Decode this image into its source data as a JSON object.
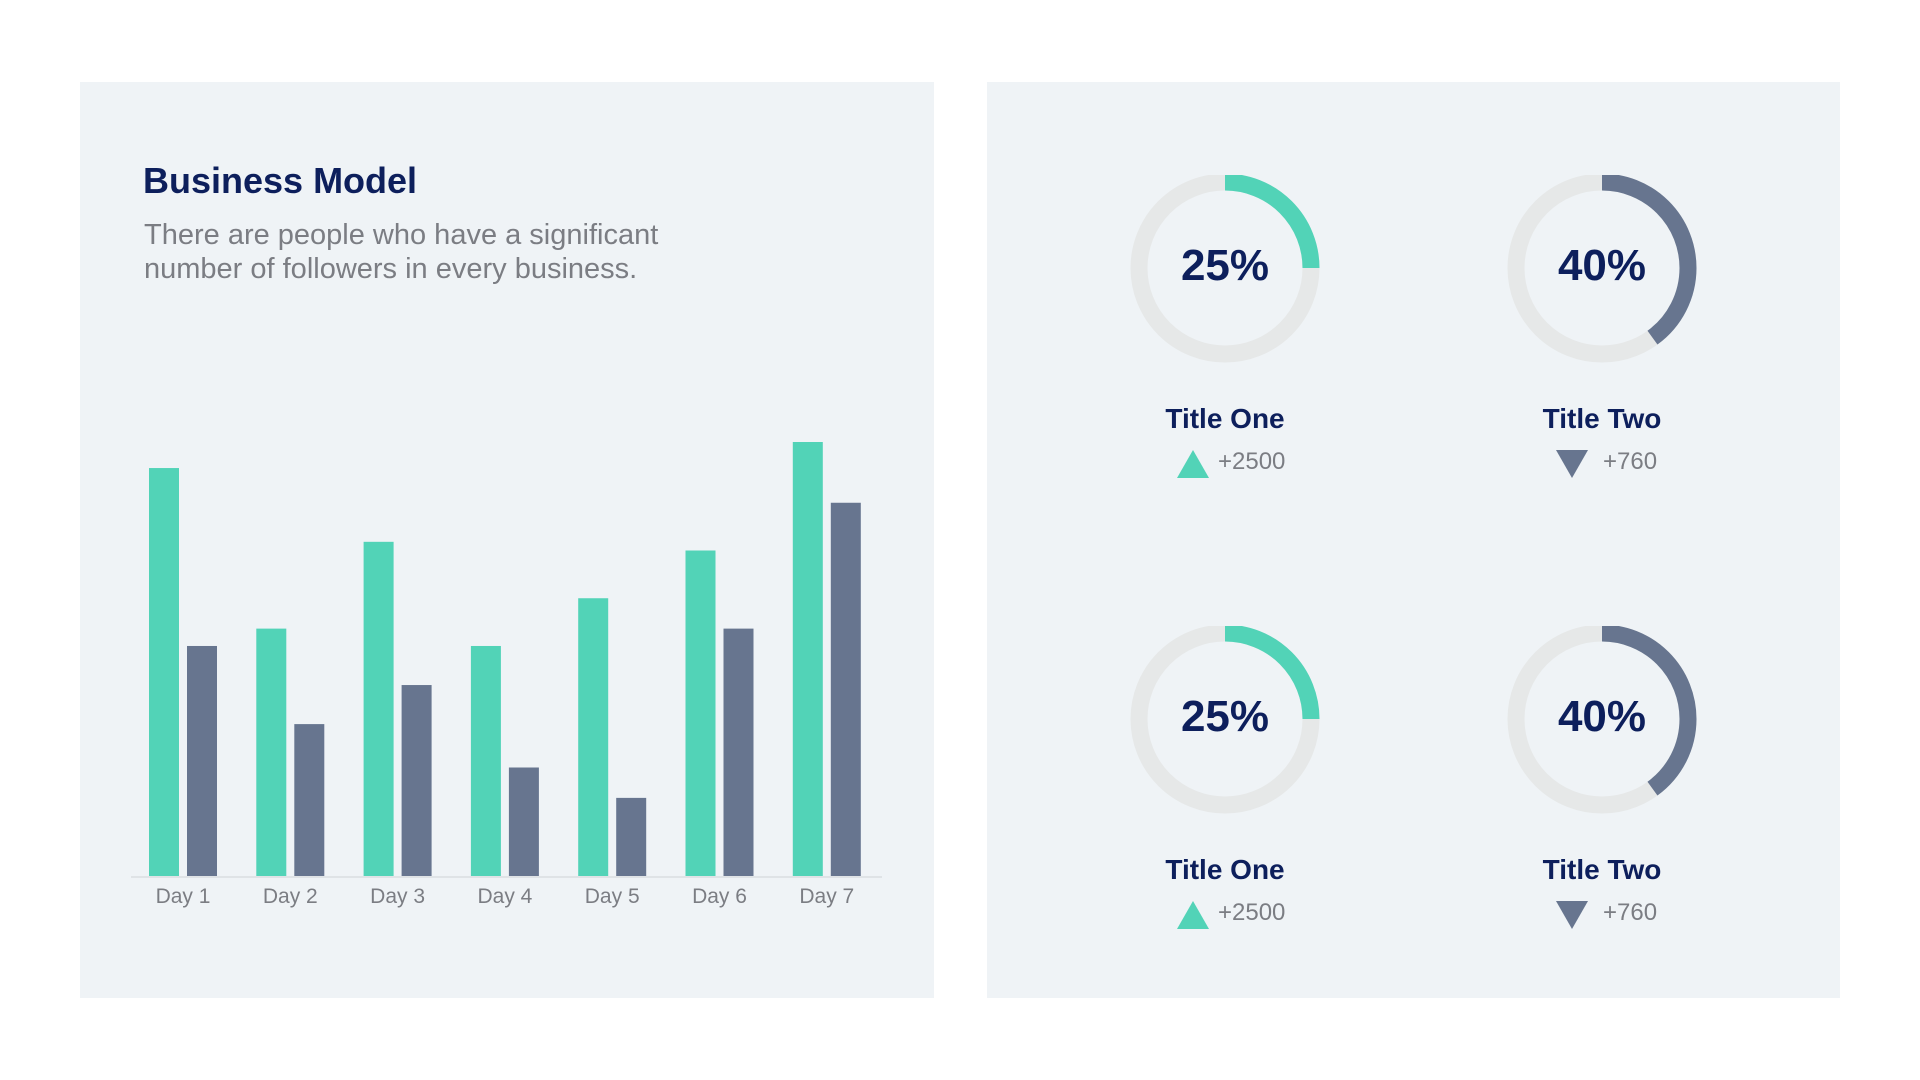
{
  "colors": {
    "accent": "#52d3b7",
    "secondary": "#67758f",
    "track": "#e6e8e8",
    "heading": "#0d1f5c",
    "panel": "#eff3f6"
  },
  "header": {
    "title": "Business Model",
    "subtitle": "There are people who have a significant number of followers in every business."
  },
  "chart_data": {
    "type": "bar",
    "categories": [
      "Day 1",
      "Day 2",
      "Day 3",
      "Day 4",
      "Day 5",
      "Day 6",
      "Day 7"
    ],
    "series": [
      {
        "values": [
          94,
          57,
          77,
          53,
          64,
          75,
          100
        ],
        "color": "#52d3b7"
      },
      {
        "values": [
          53,
          35,
          44,
          25,
          18,
          57,
          86
        ],
        "color": "#67758f"
      }
    ],
    "ylim": [
      0,
      100
    ],
    "grid": false,
    "title": "",
    "xlabel": "",
    "ylabel": ""
  },
  "kpis": [
    {
      "percent": "25%",
      "value_fraction": 0.25,
      "title": "Title One",
      "trend": "up",
      "delta": "+2500",
      "color": "#52d3b7"
    },
    {
      "percent": "40%",
      "value_fraction": 0.4,
      "title": "Title Two",
      "trend": "down",
      "delta": "+760",
      "color": "#67758f"
    },
    {
      "percent": "25%",
      "value_fraction": 0.25,
      "title": "Title One",
      "trend": "up",
      "delta": "+2500",
      "color": "#52d3b7"
    },
    {
      "percent": "40%",
      "value_fraction": 0.4,
      "title": "Title Two",
      "trend": "down",
      "delta": "+760",
      "color": "#67758f"
    }
  ]
}
